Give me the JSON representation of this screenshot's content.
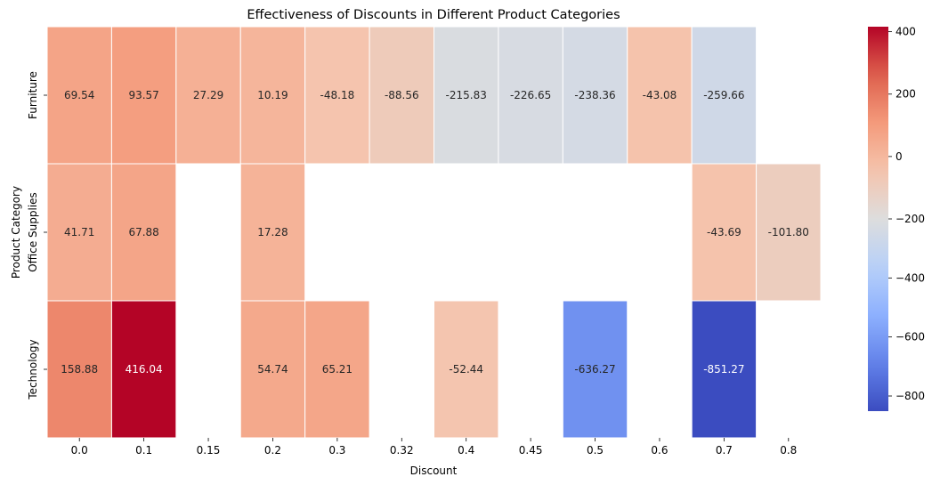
{
  "chart_data": {
    "type": "heatmap",
    "title": "Effectiveness of Discounts in Different Product Categories",
    "xlabel": "Discount",
    "ylabel": "Product Category",
    "x": [
      "0.0",
      "0.1",
      "0.15",
      "0.2",
      "0.3",
      "0.32",
      "0.4",
      "0.45",
      "0.5",
      "0.6",
      "0.7",
      "0.8"
    ],
    "y": [
      "Furniture",
      "Office Supplies",
      "Technology"
    ],
    "values": [
      [
        69.54,
        93.57,
        27.29,
        10.19,
        -48.18,
        -88.56,
        -215.83,
        -226.65,
        -238.36,
        -43.08,
        -259.66,
        null
      ],
      [
        41.71,
        67.88,
        null,
        17.28,
        null,
        null,
        null,
        null,
        null,
        null,
        -43.69,
        -101.8
      ],
      [
        158.88,
        416.04,
        null,
        54.74,
        65.21,
        null,
        -52.44,
        null,
        -636.27,
        null,
        -851.27,
        null
      ]
    ],
    "colormap": "coolwarm",
    "vmin": -851.27,
    "vmax": 416.04,
    "colorbar_ticks": [
      "400",
      "200",
      "0",
      "−200",
      "−400",
      "−600",
      "−800"
    ]
  }
}
